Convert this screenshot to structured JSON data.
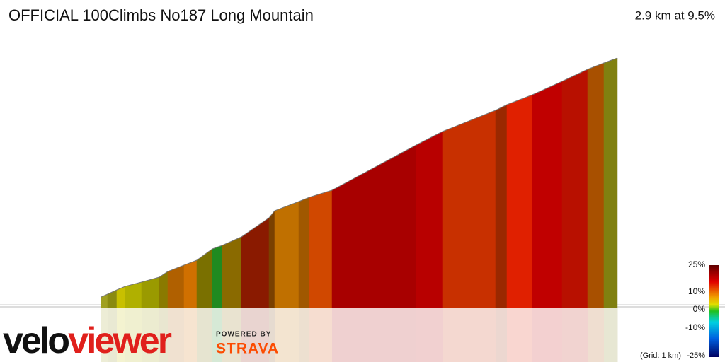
{
  "header": {
    "title": "OFFICIAL 100Climbs No187 Long Mountain",
    "summary": "2.9 km at 9.5%"
  },
  "legend": {
    "labels": [
      "25%",
      "10%",
      "0%",
      "-10%",
      "-25%"
    ],
    "grid_note": "(Grid: 1 km)"
  },
  "branding": {
    "logo_part1": "velo",
    "logo_part2": "viewer",
    "powered_by": "POWERED BY",
    "strava": "STRAVA"
  }
}
